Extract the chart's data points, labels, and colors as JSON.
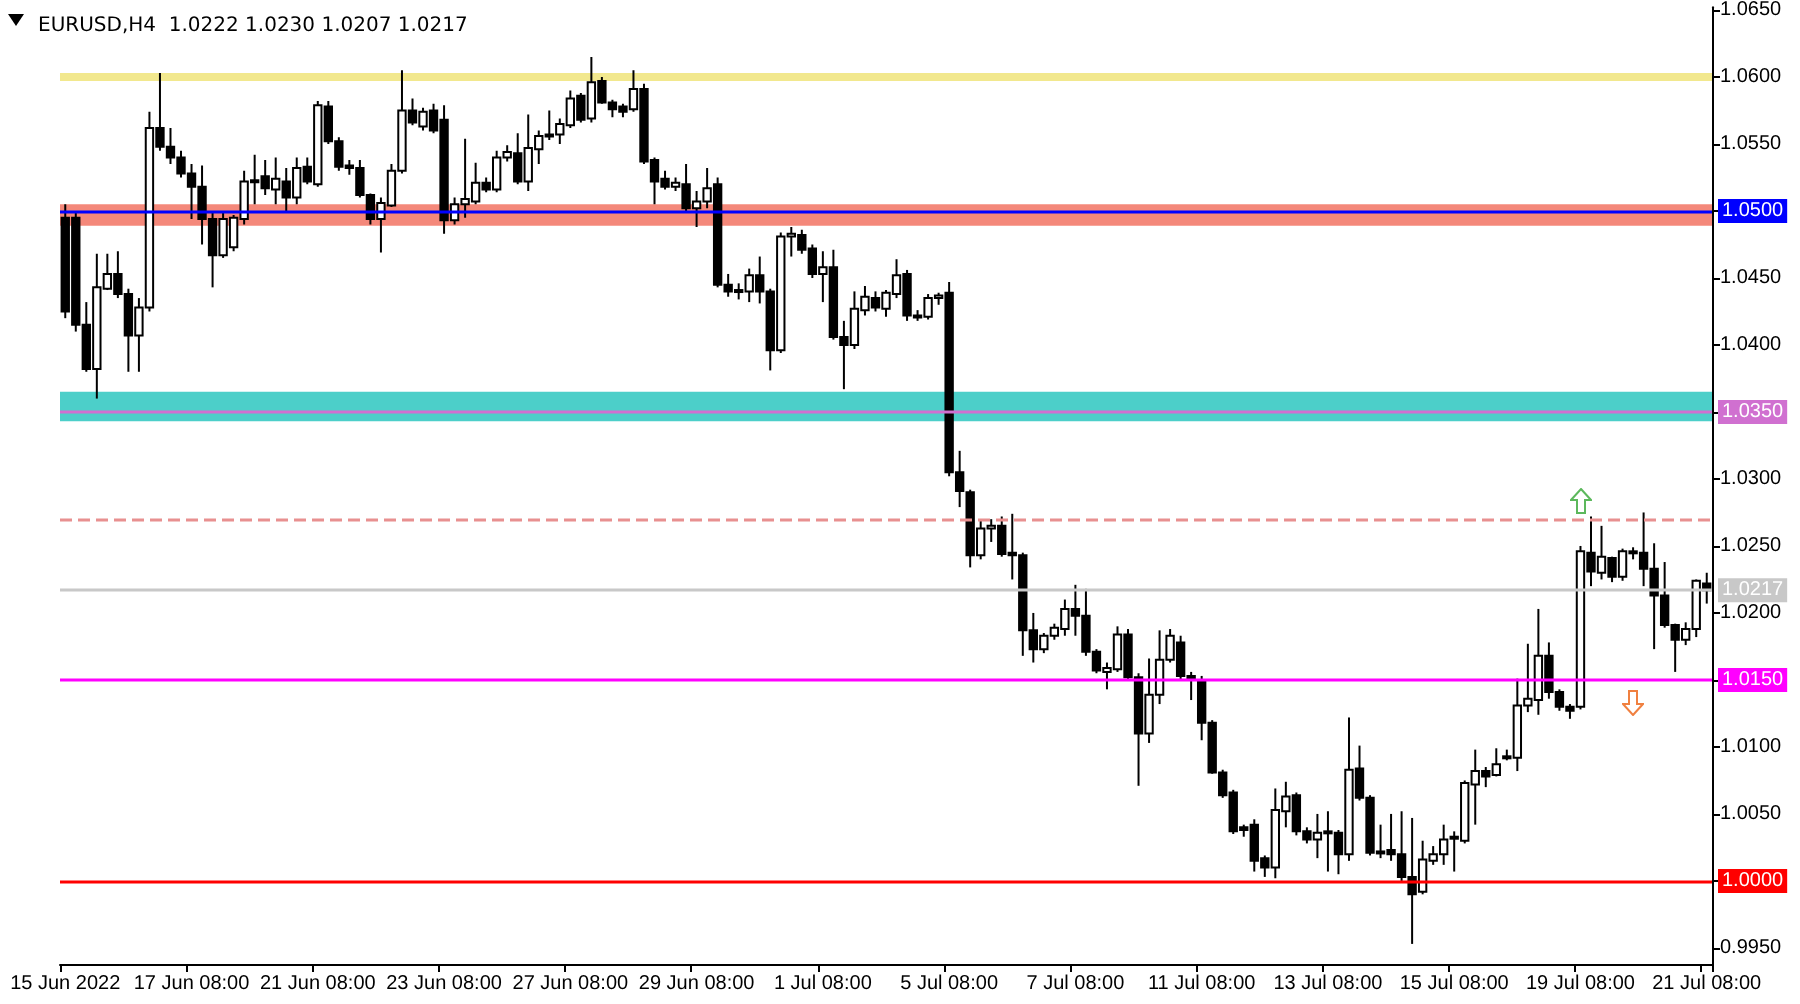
{
  "chart_data": {
    "type": "candlestick",
    "title": "EURUSD,H4  1.0222 1.0230 1.0207 1.0217",
    "categories": [
      "15 Jun 2022",
      null,
      null,
      null,
      null,
      null,
      null,
      null,
      null,
      null,
      null,
      null,
      "17 Jun 08:00",
      null,
      null,
      null,
      null,
      null,
      null,
      null,
      null,
      null,
      null,
      null,
      "21 Jun 08:00",
      null,
      null,
      null,
      null,
      null,
      null,
      null,
      null,
      null,
      null,
      null,
      "23 Jun 08:00",
      null,
      null,
      null,
      null,
      null,
      null,
      null,
      null,
      null,
      null,
      null,
      "27 Jun 08:00",
      null,
      null,
      null,
      null,
      null,
      null,
      null,
      null,
      null,
      null,
      null,
      "29 Jun 08:00",
      null,
      null,
      null,
      null,
      null,
      null,
      null,
      null,
      null,
      null,
      null,
      "1 Jul 08:00",
      null,
      null,
      null,
      null,
      null,
      null,
      null,
      null,
      null,
      null,
      null,
      "5 Jul 08:00",
      null,
      null,
      null,
      null,
      null,
      null,
      null,
      null,
      null,
      null,
      null,
      "7 Jul 08:00",
      null,
      null,
      null,
      null,
      null,
      null,
      null,
      null,
      null,
      null,
      null,
      "11 Jul 08:00",
      null,
      null,
      null,
      null,
      null,
      null,
      null,
      null,
      null,
      null,
      null,
      "13 Jul 08:00",
      null,
      null,
      null,
      null,
      null,
      null,
      null,
      null,
      null,
      null,
      null,
      "15 Jul 08:00",
      null,
      null,
      null,
      null,
      null,
      null,
      null,
      null,
      null,
      null,
      null,
      "19 Jul 08:00",
      null,
      null,
      null,
      null,
      null,
      null,
      null,
      null,
      null,
      null,
      null,
      "21 Jul 08:00"
    ],
    "ohlc": [
      [
        1.0495,
        1.0505,
        1.042,
        1.0425
      ],
      [
        1.0495,
        1.05,
        1.041,
        1.0415
      ],
      [
        1.0415,
        1.0432,
        1.038,
        1.0382
      ],
      [
        1.0382,
        1.0468,
        1.036,
        1.0443
      ],
      [
        1.0442,
        1.0468,
        1.0441,
        1.0453
      ],
      [
        1.0453,
        1.047,
        1.0435,
        1.0438
      ],
      [
        1.0438,
        1.0442,
        1.038,
        1.0407
      ],
      [
        1.0407,
        1.0435,
        1.038,
        1.0428
      ],
      [
        1.0428,
        1.0574,
        1.0425,
        1.0562
      ],
      [
        1.0562,
        1.0603,
        1.0545,
        1.0548
      ],
      [
        1.0548,
        1.0562,
        1.0535,
        1.054
      ],
      [
        1.054,
        1.0545,
        1.0525,
        1.0528
      ],
      [
        1.0528,
        1.0535,
        1.0494,
        1.0518
      ],
      [
        1.0518,
        1.0534,
        1.0475,
        1.0494
      ],
      [
        1.0494,
        1.05,
        1.0443,
        1.0467
      ],
      [
        1.0467,
        1.05,
        1.0465,
        1.0494
      ],
      [
        1.0473,
        1.0497,
        1.047,
        1.0495
      ],
      [
        1.0494,
        1.053,
        1.049,
        1.0522
      ],
      [
        1.0522,
        1.0542,
        1.0505,
        1.0523
      ],
      [
        1.0526,
        1.0538,
        1.0512,
        1.0517
      ],
      [
        1.0516,
        1.054,
        1.0505,
        1.0524
      ],
      [
        1.0522,
        1.0532,
        1.05,
        1.051
      ],
      [
        1.051,
        1.054,
        1.0505,
        1.0532
      ],
      [
        1.0533,
        1.054,
        1.052,
        1.0522
      ],
      [
        1.052,
        1.0582,
        1.0518,
        1.0579
      ],
      [
        1.0578,
        1.0582,
        1.055,
        1.0552
      ],
      [
        1.0552,
        1.0555,
        1.053,
        1.0533
      ],
      [
        1.0534,
        1.0538,
        1.0527,
        1.0532
      ],
      [
        1.0532,
        1.0538,
        1.051,
        1.0512
      ],
      [
        1.0512,
        1.0513,
        1.049,
        1.0494
      ],
      [
        1.0494,
        1.051,
        1.0469,
        1.0506
      ],
      [
        1.0504,
        1.0535,
        1.0503,
        1.053
      ],
      [
        1.053,
        1.0605,
        1.0528,
        1.0575
      ],
      [
        1.0575,
        1.0584,
        1.0564,
        1.0566
      ],
      [
        1.0563,
        1.0577,
        1.056,
        1.0574
      ],
      [
        1.0575,
        1.058,
        1.0558,
        1.056
      ],
      [
        1.0568,
        1.0579,
        1.0483,
        1.0493
      ],
      [
        1.0493,
        1.051,
        1.049,
        1.0505
      ],
      [
        1.0505,
        1.0554,
        1.0495,
        1.0509
      ],
      [
        1.0507,
        1.0536,
        1.0505,
        1.0521
      ],
      [
        1.0521,
        1.0525,
        1.0514,
        1.0516
      ],
      [
        1.0516,
        1.0545,
        1.0514,
        1.054
      ],
      [
        1.054,
        1.0549,
        1.0537,
        1.0544
      ],
      [
        1.0543,
        1.0558,
        1.052,
        1.0522
      ],
      [
        1.0522,
        1.0572,
        1.0515,
        1.0547
      ],
      [
        1.0546,
        1.056,
        1.0535,
        1.0556
      ],
      [
        1.0556,
        1.0575,
        1.0553,
        1.0557
      ],
      [
        1.0557,
        1.0569,
        1.055,
        1.0565
      ],
      [
        1.0564,
        1.059,
        1.0562,
        1.0584
      ],
      [
        1.0586,
        1.0588,
        1.0566,
        1.0568
      ],
      [
        1.0569,
        1.0615,
        1.0566,
        1.0596
      ],
      [
        1.0597,
        1.06,
        1.058,
        1.0581
      ],
      [
        1.0581,
        1.0583,
        1.057,
        1.0576
      ],
      [
        1.0578,
        1.058,
        1.057,
        1.0574
      ],
      [
        1.0576,
        1.0605,
        1.0574,
        1.0591
      ],
      [
        1.0591,
        1.0595,
        1.0535,
        1.0537
      ],
      [
        1.0538,
        1.054,
        1.0505,
        1.0522
      ],
      [
        1.0524,
        1.053,
        1.0516,
        1.0518
      ],
      [
        1.0518,
        1.0525,
        1.0515,
        1.0521
      ],
      [
        1.052,
        1.0535,
        1.05,
        1.0502
      ],
      [
        1.0502,
        1.0515,
        1.0488,
        1.0507
      ],
      [
        1.0507,
        1.0532,
        1.0502,
        1.0517
      ],
      [
        1.052,
        1.0525,
        1.0443,
        1.0445
      ],
      [
        1.0445,
        1.0453,
        1.0436,
        1.044
      ],
      [
        1.044,
        1.0446,
        1.0434,
        1.0441
      ],
      [
        1.044,
        1.0457,
        1.0432,
        1.0452
      ],
      [
        1.0452,
        1.0466,
        1.0431,
        1.044
      ],
      [
        1.044,
        1.0442,
        1.0381,
        1.0396
      ],
      [
        1.0396,
        1.0484,
        1.0394,
        1.0481
      ],
      [
        1.0481,
        1.0488,
        1.0466,
        1.0483
      ],
      [
        1.0482,
        1.0486,
        1.0468,
        1.0471
      ],
      [
        1.0472,
        1.0475,
        1.045,
        1.0453
      ],
      [
        1.0453,
        1.047,
        1.0432,
        1.0458
      ],
      [
        1.0458,
        1.0471,
        1.0404,
        1.0406
      ],
      [
        1.0406,
        1.0418,
        1.0367,
        1.04
      ],
      [
        1.04,
        1.044,
        1.0397,
        1.0427
      ],
      [
        1.0426,
        1.0444,
        1.0422,
        1.0436
      ],
      [
        1.0435,
        1.044,
        1.0425,
        1.0428
      ],
      [
        1.0427,
        1.0441,
        1.0421,
        1.0439
      ],
      [
        1.0438,
        1.0464,
        1.0435,
        1.0452
      ],
      [
        1.0453,
        1.0456,
        1.0418,
        1.0422
      ],
      [
        1.0422,
        1.0426,
        1.0418,
        1.0421
      ],
      [
        1.0421,
        1.0438,
        1.0419,
        1.0435
      ],
      [
        1.0435,
        1.0439,
        1.043,
        1.0437
      ],
      [
        1.0439,
        1.0447,
        1.0302,
        1.0305
      ],
      [
        1.0305,
        1.0321,
        1.0279,
        1.0291
      ],
      [
        1.029,
        1.0292,
        1.0234,
        1.0243
      ],
      [
        1.0243,
        1.027,
        1.024,
        1.0263
      ],
      [
        1.0263,
        1.027,
        1.0253,
        1.0265
      ],
      [
        1.0265,
        1.0272,
        1.0242,
        1.0244
      ],
      [
        1.0245,
        1.0274,
        1.0225,
        1.0243
      ],
      [
        1.0243,
        1.0245,
        1.0168,
        1.0187
      ],
      [
        1.0187,
        1.02,
        1.0163,
        1.0173
      ],
      [
        1.0173,
        1.0185,
        1.017,
        1.0183
      ],
      [
        1.0183,
        1.0192,
        1.018,
        1.0189
      ],
      [
        1.0188,
        1.021,
        1.0183,
        1.0203
      ],
      [
        1.0203,
        1.0221,
        1.0183,
        1.0198
      ],
      [
        1.0198,
        1.0218,
        1.0168,
        1.0171
      ],
      [
        1.0171,
        1.0173,
        1.0155,
        1.0157
      ],
      [
        1.0156,
        1.0163,
        1.0143,
        1.0159
      ],
      [
        1.0158,
        1.019,
        1.0156,
        1.0184
      ],
      [
        1.0184,
        1.0188,
        1.015,
        1.0152
      ],
      [
        1.0152,
        1.0155,
        1.0071,
        1.011
      ],
      [
        1.011,
        1.0166,
        1.0103,
        1.0139
      ],
      [
        1.0139,
        1.0187,
        1.0132,
        1.0165
      ],
      [
        1.0165,
        1.0188,
        1.0163,
        1.0183
      ],
      [
        1.0178,
        1.0183,
        1.015,
        1.0153
      ],
      [
        1.0153,
        1.0156,
        1.0135,
        1.015
      ],
      [
        1.015,
        1.0153,
        1.0105,
        1.0118
      ],
      [
        1.0118,
        1.012,
        1.008,
        1.0081
      ],
      [
        1.0081,
        1.0083,
        1.0062,
        1.0064
      ],
      [
        1.0066,
        1.0068,
        1.0035,
        1.0037
      ],
      [
        1.004,
        1.0042,
        1.0033,
        1.0038
      ],
      [
        1.0042,
        1.0046,
        1.0007,
        1.0015
      ],
      [
        1.0017,
        1.0019,
        1.0003,
        1.001
      ],
      [
        1.001,
        1.0069,
        1.0002,
        1.0053
      ],
      [
        1.0052,
        1.0074,
        1.004,
        1.0063
      ],
      [
        1.0064,
        1.0066,
        1.0034,
        1.0037
      ],
      [
        1.0037,
        1.004,
        1.0028,
        1.0031
      ],
      [
        1.0031,
        1.005,
        1.0017,
        1.0036
      ],
      [
        1.0037,
        1.0052,
        1.0007,
        1.0036
      ],
      [
        1.0036,
        1.0038,
        1.0005,
        1.002
      ],
      [
        1.002,
        1.0122,
        1.0015,
        1.0083
      ],
      [
        1.0084,
        1.0101,
        1.006,
        1.0062
      ],
      [
        1.0062,
        1.0064,
        1.0019,
        1.0021
      ],
      [
        1.0022,
        1.0042,
        1.0017,
        1.0021
      ],
      [
        1.0023,
        1.005,
        1.0015,
        1.002
      ],
      [
        1.002,
        1.0052,
        1.0,
        1.0003
      ],
      [
        1.0003,
        1.0047,
        0.9953,
        0.999
      ],
      [
        0.9992,
        1.003,
        0.999,
        1.0016
      ],
      [
        1.0015,
        1.0026,
        1.0012,
        1.002
      ],
      [
        1.002,
        1.0042,
        1.0012,
        1.0031
      ],
      [
        1.0033,
        1.0037,
        1.0007,
        1.0033
      ],
      [
        1.003,
        1.0075,
        1.0028,
        1.0073
      ],
      [
        1.0072,
        1.0098,
        1.0042,
        1.0082
      ],
      [
        1.0082,
        1.0085,
        1.007,
        1.0078
      ],
      [
        1.0079,
        1.0099,
        1.0078,
        1.0087
      ],
      [
        1.0092,
        1.0098,
        1.009,
        1.0093
      ],
      [
        1.0092,
        1.0151,
        1.0082,
        1.0131
      ],
      [
        1.0131,
        1.0177,
        1.0126,
        1.0136
      ],
      [
        1.0135,
        1.0203,
        1.0124,
        1.0168
      ],
      [
        1.0168,
        1.0178,
        1.0136,
        1.0141
      ],
      [
        1.0141,
        1.0143,
        1.0127,
        1.013
      ],
      [
        1.013,
        1.0132,
        1.0121,
        1.0127
      ],
      [
        1.013,
        1.025,
        1.0128,
        1.0246
      ],
      [
        1.0245,
        1.0272,
        1.022,
        1.0231
      ],
      [
        1.023,
        1.0265,
        1.0225,
        1.0242
      ],
      [
        1.0241,
        1.0242,
        1.0223,
        1.0227
      ],
      [
        1.0227,
        1.0248,
        1.0224,
        1.0246
      ],
      [
        1.0246,
        1.0249,
        1.024,
        1.0245
      ],
      [
        1.0245,
        1.0275,
        1.022,
        1.0233
      ],
      [
        1.0233,
        1.0252,
        1.0173,
        1.0213
      ],
      [
        1.0213,
        1.0238,
        1.0189,
        1.0191
      ],
      [
        1.0191,
        1.0192,
        1.0156,
        1.018
      ],
      [
        1.018,
        1.0193,
        1.0176,
        1.0188
      ],
      [
        1.0188,
        1.0225,
        1.0182,
        1.0224
      ],
      [
        1.0222,
        1.023,
        1.0207,
        1.0217
      ]
    ],
    "ylim": [
      0.9938,
      1.0652
    ],
    "yticks": [
      {
        "value": 0.995,
        "label": "0.9950"
      },
      {
        "value": 1.0,
        "label": "1.0000"
      },
      {
        "value": 1.005,
        "label": "1.0050"
      },
      {
        "value": 1.01,
        "label": "1.0100"
      },
      {
        "value": 1.015,
        "label": "1.0150"
      },
      {
        "value": 1.02,
        "label": "1.0200"
      },
      {
        "value": 1.025,
        "label": "1.0250"
      },
      {
        "value": 1.03,
        "label": "1.0300"
      },
      {
        "value": 1.035,
        "label": "1.0350"
      },
      {
        "value": 1.04,
        "label": "1.0400"
      },
      {
        "value": 1.045,
        "label": "1.0450"
      },
      {
        "value": 1.05,
        "label": "1.0500"
      },
      {
        "value": 1.055,
        "label": "1.0550"
      },
      {
        "value": 1.06,
        "label": "1.0600"
      },
      {
        "value": 1.065,
        "label": "1.0650"
      }
    ],
    "bands": [
      {
        "axis": "y",
        "from": 1.0597,
        "to": 1.0603,
        "color": "#f2e88e"
      },
      {
        "axis": "y",
        "from": 1.0489,
        "to": 1.0505,
        "color": "#f4887a"
      },
      {
        "axis": "y",
        "from": 1.0343,
        "to": 1.0365,
        "color": "#4ccfc9"
      }
    ],
    "ref_lines": [
      {
        "axis": "y",
        "value": 1.05,
        "label": "1.0500",
        "color": "#0000ff"
      },
      {
        "axis": "y",
        "value": 1.035,
        "label": "1.0350",
        "color": "#d070d0"
      },
      {
        "axis": "y",
        "value": 1.0217,
        "label": "1.0217",
        "color": "#c8c8c8"
      },
      {
        "axis": "y",
        "value": 1.015,
        "label": "1.0150",
        "color": "#ff00ff"
      },
      {
        "axis": "y",
        "value": 1.0,
        "label": "1.0000",
        "color": "#ff0000"
      },
      {
        "axis": "y",
        "value": 1.027,
        "label": null,
        "color": "#e89090",
        "line_style": "dashed"
      }
    ],
    "grid": false
  }
}
